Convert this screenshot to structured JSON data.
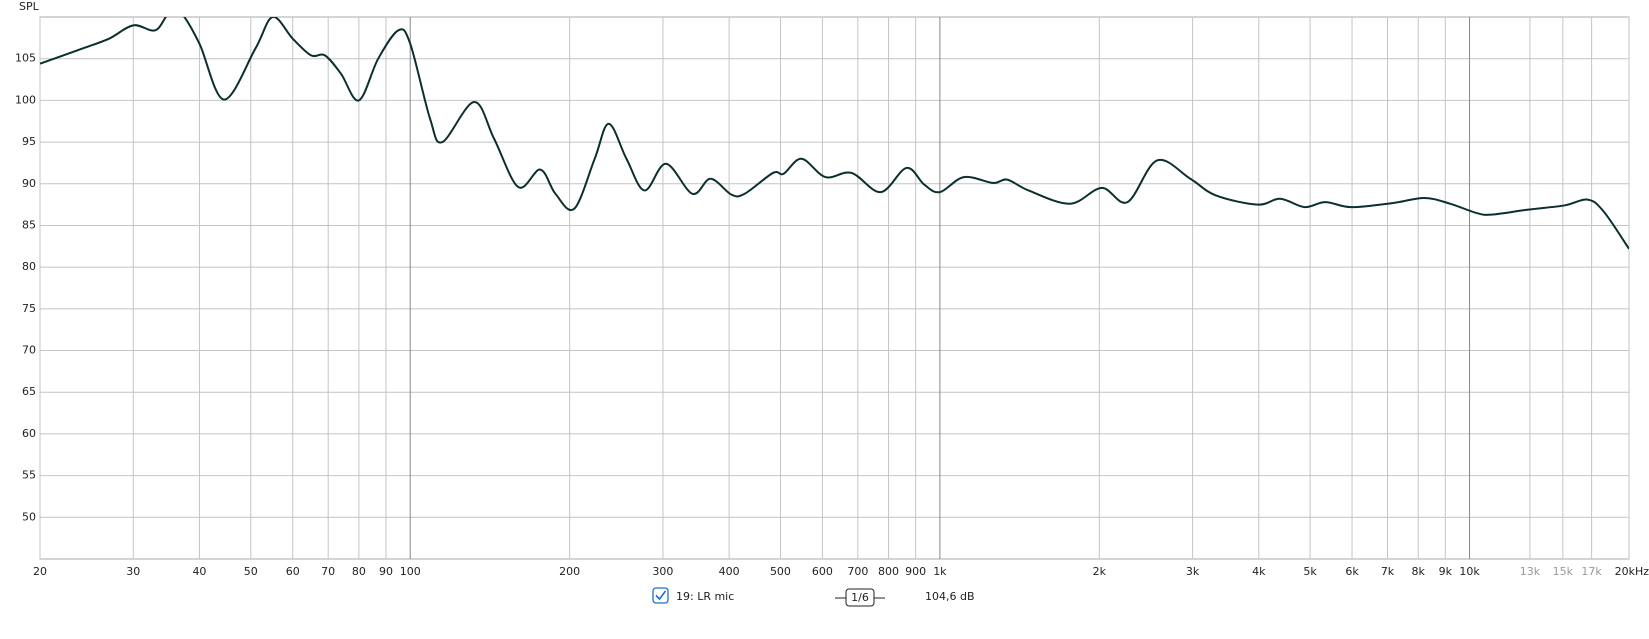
{
  "chart_data": {
    "type": "line",
    "y_label": "SPL",
    "x": [
      20,
      24,
      27,
      30,
      33,
      35,
      37,
      40,
      44.5,
      51,
      55,
      60,
      65,
      69,
      74,
      80,
      87,
      95,
      100,
      109,
      115,
      132,
      144,
      160,
      176,
      188,
      204,
      223,
      237,
      256,
      277,
      304,
      341,
      369,
      404,
      428,
      484,
      507,
      548,
      608,
      681,
      773,
      865,
      934,
      1000,
      1110,
      1260,
      1340,
      1470,
      1760,
      2020,
      2260,
      2570,
      2970,
      3320,
      3980,
      4390,
      4880,
      5340,
      5980,
      7180,
      8220,
      9200,
      10300,
      11000,
      12900,
      15100,
      16700,
      17900,
      20000
    ],
    "series": [
      {
        "name": "19: LR mic",
        "color": "#0b2f2f",
        "values": [
          104.4,
          106.2,
          107.4,
          109.0,
          108.4,
          110.4,
          110.4,
          106.8,
          100.1,
          106.2,
          110.0,
          107.4,
          105.4,
          105.4,
          103.2,
          100.0,
          105.0,
          108.4,
          106.8,
          97.8,
          95.0,
          99.8,
          95.4,
          89.6,
          91.7,
          88.8,
          87.0,
          93.0,
          97.2,
          93.0,
          89.2,
          92.4,
          88.8,
          90.6,
          88.7,
          88.8,
          91.3,
          91.2,
          93.0,
          90.8,
          91.3,
          89.0,
          91.9,
          89.9,
          89.0,
          90.8,
          90.1,
          90.5,
          89.2,
          87.6,
          89.5,
          87.8,
          92.8,
          90.6,
          88.6,
          87.5,
          88.2,
          87.2,
          87.8,
          87.2,
          87.7,
          88.3,
          87.6,
          86.5,
          86.3,
          86.9,
          87.4,
          88.1,
          86.7,
          82.2
        ]
      }
    ],
    "log_x": true,
    "grid": true,
    "xlim": [
      20,
      20000
    ],
    "xticks": [
      20,
      30,
      40,
      50,
      60,
      70,
      80,
      90,
      100,
      200,
      300,
      400,
      500,
      600,
      700,
      800,
      900,
      {
        "value": 1000,
        "label": "1k"
      },
      {
        "value": 2000,
        "label": "2k"
      },
      {
        "value": 3000,
        "label": "3k"
      },
      {
        "value": 4000,
        "label": "4k"
      },
      {
        "value": 5000,
        "label": "5k"
      },
      {
        "value": 6000,
        "label": "6k"
      },
      {
        "value": 7000,
        "label": "7k"
      },
      {
        "value": 8000,
        "label": "8k"
      },
      {
        "value": 9000,
        "label": "9k"
      },
      {
        "value": 10000,
        "label": "10k"
      },
      {
        "value": 13000,
        "label": "13k"
      },
      {
        "value": 15000,
        "label": "15k"
      },
      {
        "value": 17000,
        "label": "17k"
      },
      {
        "value": 20000,
        "label": "20kHz"
      }
    ],
    "ylim": [
      45,
      110
    ],
    "yticks": [
      50,
      55,
      60,
      65,
      70,
      75,
      80,
      85,
      90,
      95,
      100,
      105
    ],
    "smoothing": "1/6",
    "readout": "104,6 dB"
  }
}
